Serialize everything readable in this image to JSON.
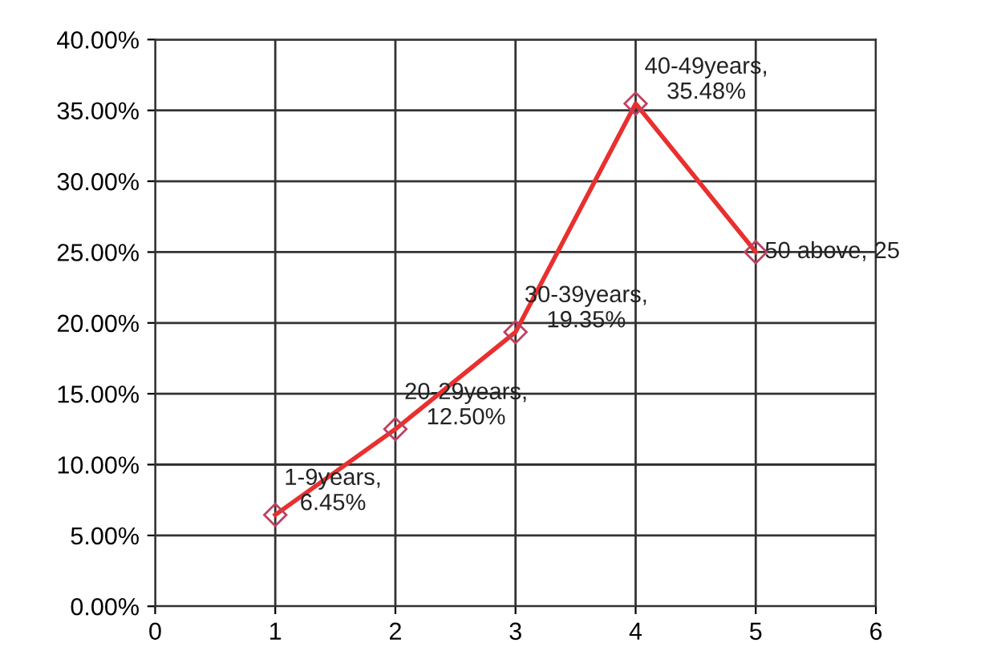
{
  "chart_data": {
    "type": "line",
    "x": [
      1,
      2,
      3,
      4,
      5
    ],
    "series": [
      {
        "color": "#e8302f",
        "values": [
          6.45,
          12.5,
          19.35,
          35.48,
          25
        ],
        "value_labels": [
          "1-9years,\n6.45%",
          "20-29years,\n12.50%",
          "30-39years,\n19.35%",
          "40-49years,\n35.48%",
          "50 above, 25"
        ]
      }
    ],
    "xlim": [
      0,
      6
    ],
    "xticks": [
      0,
      1,
      2,
      3,
      4,
      5,
      6
    ],
    "ylim": [
      0,
      40
    ],
    "yticks": [
      {
        "value": 0,
        "label": "0.00%"
      },
      {
        "value": 5,
        "label": "5.00%"
      },
      {
        "value": 10,
        "label": "10.00%"
      },
      {
        "value": 15,
        "label": "15.00%"
      },
      {
        "value": 20,
        "label": "20.00%"
      },
      {
        "value": 25,
        "label": "25.00%"
      },
      {
        "value": 30,
        "label": "30.00%"
      },
      {
        "value": 35,
        "label": "35.00%"
      },
      {
        "value": 40,
        "label": "40.00%"
      }
    ],
    "grid": true,
    "marker": "diamond",
    "line_style": "solid"
  }
}
